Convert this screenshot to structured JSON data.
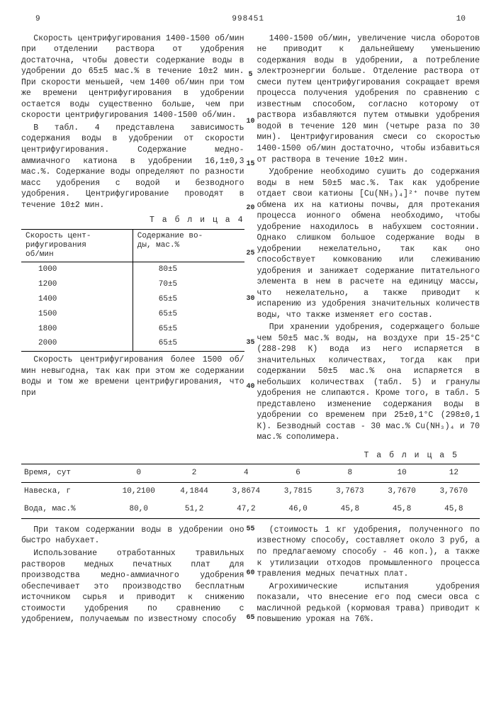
{
  "header": {
    "left_page": "9",
    "doc_number": "998451",
    "right_page": "10"
  },
  "col_left": {
    "p1": "Скорость центрифугирования 1400-1500 об/мин при отделении раствора от удобрения достаточна, чтобы довести содержание воды в удобрении до 65±5 мас.% в течение 10±2 мин. При скорости меньшей, чем 1400 об/мин при том же времени центрифугирования в удобрении остается воды существенно больше, чем при скорости центрифугирования 1400-1500 об/мин.",
    "p2": "В табл. 4 представлена зависимость содержания воды в удобрении от скорости центрифугирования. Содержание медно-аммиачного катиона в удобрении 16,1±0,3 мас.%. Содержание воды определяют по разности масс удобрения с водой и безводного удобрения. Центрифугирование проводят в течение 10±2 мин.",
    "table4_title": "Т а б л и ц а  4",
    "table4": {
      "headers": [
        "Скорость цент-\nрифугирования\nоб/мин",
        "Содержание во-\nды, мас.%"
      ],
      "rows": [
        [
          "1000",
          "80±5"
        ],
        [
          "1200",
          "70±5"
        ],
        [
          "1400",
          "65±5"
        ],
        [
          "1500",
          "65±5"
        ],
        [
          "1800",
          "65±5"
        ],
        [
          "2000",
          "65±5"
        ]
      ]
    },
    "p3": "Скорость центрифугирования более 1500 об/мин невыгодна, так как при этом же содержании воды и том же времени центрифугирования, что при"
  },
  "col_right": {
    "p1": "1400-1500 об/мин, увеличение числа оборотов не приводит к дальнейшему уменьшению содержания воды в удобрении, а потребление электроэнергии больше. Отделение раствора от смеси путем центрифугирования сокращает время процесса получения удобрения по сравнению с известным способом, согласно которому от раствора избавляются путем отмывки удобрения водой в течение 120 мин (четыре раза по 30 мин). Центрифугирования смеси со скоростью 1400-1500 об/мин достаточно, чтобы избавиться от раствора в течение 10±2 мин.",
    "p2": "Удобрение необходимо сушить до содержания воды в нем 50±5 мас.%. Так как удобрение отдает свои катионы [Cu(NH₃)₄]²⁺ почве путем обмена их на катионы почвы, для протекания процесса ионного обмена необходимо, чтобы удобрение находилось в набухшем состоянии. Однако слишком большое содержание воды в удобрении нежелательно, так как оно способствует комкованию или слеживанию удобрения и занижает содержание питательного элемента в нем в расчете на единицу массы, что нежелательно, а также приводит к испарению из удобрения значительных количеств воды, что также изменяет его состав.",
    "p3": "При хранении удобрения, содержащего больше чем 50±5 мас.% воды, на воздухе при 15-25°С (288-298 К) вода из него испаряется в значительных количествах, тогда как при содержании 50±5 мас.% она испаряется в небольших количествах (табл. 5) и гранулы удобрения не слипаются. Кроме того, в табл. 5 представлено изменение содержания воды в удобрении со временем при 25±0,1°С (298±0,1 К). Безводный состав - 30 мас.% Cu(NH₃)₄ и 70 мас.% сополимера."
  },
  "table5_title": "Т а б л и ц а  5",
  "table5": {
    "header_row": [
      "Время, сут",
      "0",
      "2",
      "4",
      "6",
      "8",
      "10",
      "12"
    ],
    "rows": [
      [
        "Навеска, г",
        "10,2100",
        "4,1844",
        "3,8674",
        "3,7815",
        "3,7673",
        "3,7670",
        "3,7670"
      ],
      [
        "Вода, мас.%",
        "80,0",
        "51,2",
        "47,2",
        "46,0",
        "45,8",
        "45,8",
        "45,8"
      ]
    ]
  },
  "bottom_left": {
    "p1": "При таком содержании воды в удобрении оно быстро набухает.",
    "p2": "Использование отработанных травильных растворов медных печатных плат для производства медно-аммиачного удобрения обеспечивает это производство бесплатным источником сырья и приводит к снижению стоимости удобрения по сравнению с удобрением, получаемым по известному способу"
  },
  "bottom_right": {
    "p1": "(стоимость 1 кг удобрения, полученного по известному способу, составляет около 3 руб, а по предлагаемому способу - 46 коп.), а также к утилизации отходов промышленного процесса травления медных печатных плат.",
    "p2": "Агрохимические испытания удобрения показали, что внесение его под смеси овса с масличной редькой (кормовая трава) приводит к повышению урожая на 76%."
  },
  "line_numbers_center": [
    "5",
    "10",
    "15",
    "20",
    "25",
    "30",
    "35",
    "40"
  ],
  "line_numbers_bottom": [
    "55",
    "60",
    "65"
  ]
}
